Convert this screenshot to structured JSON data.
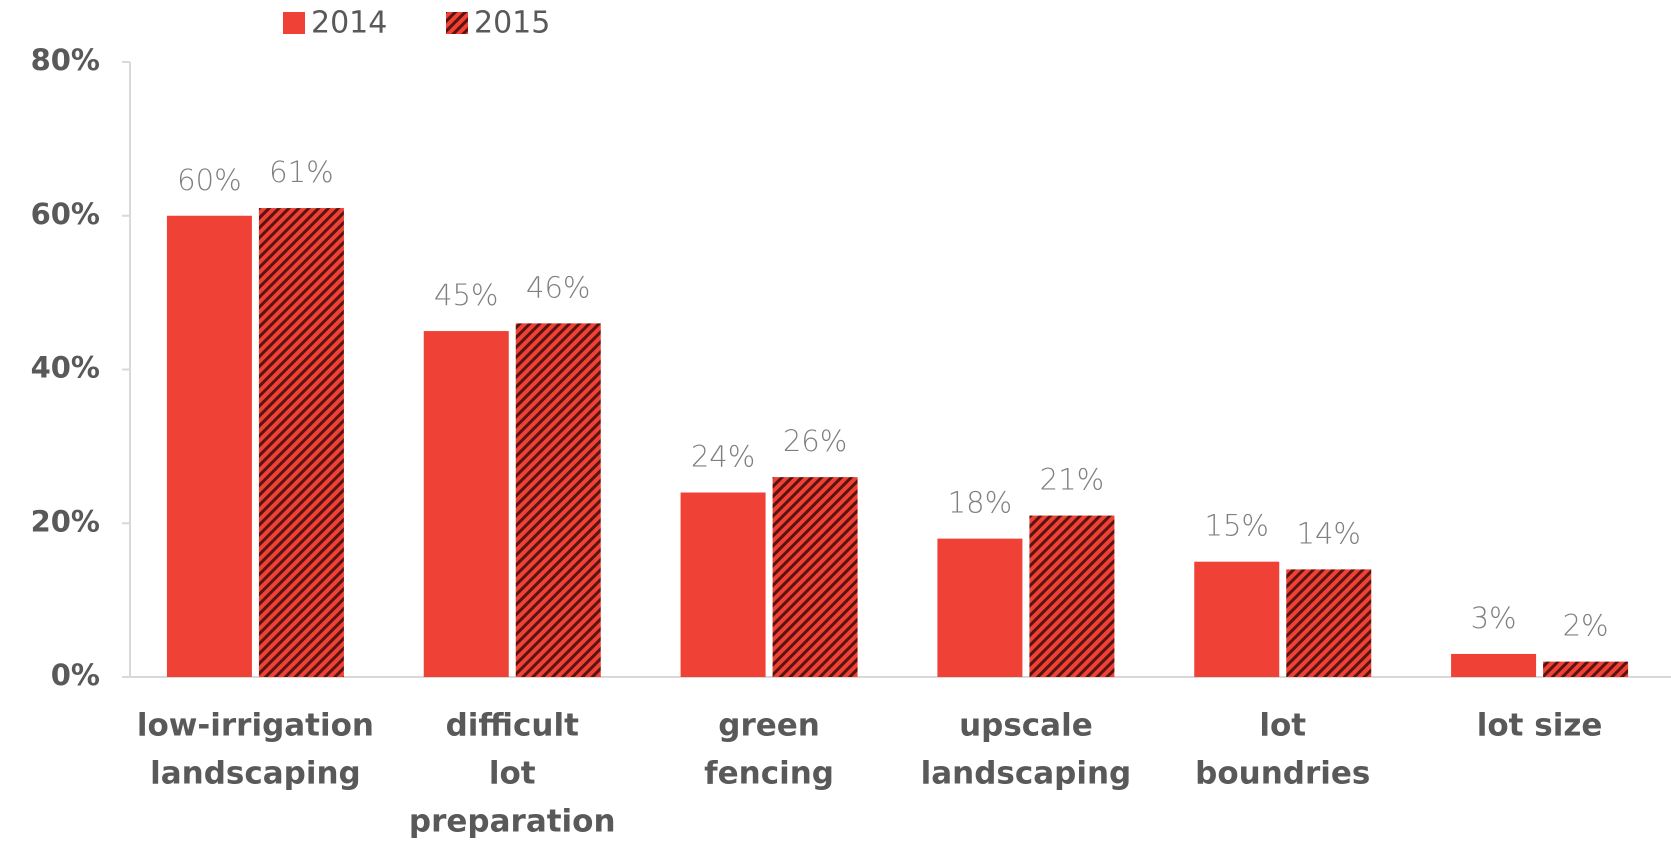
{
  "chart_data": {
    "type": "bar",
    "categories": [
      [
        "low-irrigation",
        "landscaping"
      ],
      [
        "difficult",
        "lot",
        "preparation"
      ],
      [
        "green",
        "fencing"
      ],
      [
        "upscale",
        "landscaping"
      ],
      [
        "lot",
        "boundries"
      ],
      [
        "lot size"
      ]
    ],
    "series": [
      {
        "name": "2014",
        "color": "#ef4136",
        "values": [
          60,
          45,
          24,
          18,
          15,
          3
        ],
        "value_labels": [
          "60%",
          "45%",
          "24%",
          "18%",
          "15%",
          "3%"
        ]
      },
      {
        "name": "2015",
        "color": "#ef4136",
        "hatch": "#5a1410",
        "values": [
          61,
          46,
          26,
          21,
          14,
          2
        ],
        "value_labels": [
          "61%",
          "46%",
          "26%",
          "21%",
          "14%",
          "2%"
        ]
      }
    ],
    "ylim": [
      0,
      80
    ],
    "yticks": [
      {
        "value": 0,
        "label": "0%"
      },
      {
        "value": 20,
        "label": "20%"
      },
      {
        "value": 40,
        "label": "40%"
      },
      {
        "value": 60,
        "label": "60%"
      },
      {
        "value": 80,
        "label": "80%"
      }
    ],
    "legend": "top"
  }
}
